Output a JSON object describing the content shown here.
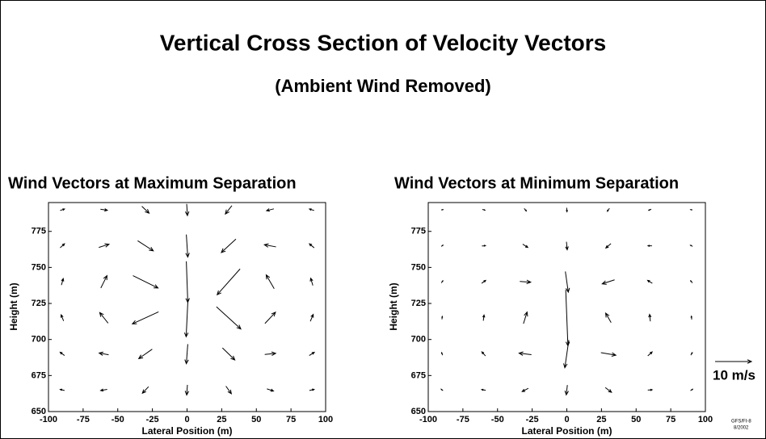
{
  "header": {
    "title": "Vertical Cross Section of Velocity Vectors",
    "subtitle": "(Ambient Wind Removed)"
  },
  "scale_key": {
    "value": 10,
    "label": "10 m/s"
  },
  "footnote": [
    "GFS/FI-8",
    "8/2002"
  ],
  "chart_data": [
    {
      "type": "quiver",
      "title": "Wind Vectors at Maximum Separation",
      "xlabel": "Lateral Position (m)",
      "ylabel": "Height (m)",
      "xlim": [
        -100,
        100
      ],
      "ylim": [
        650,
        795
      ],
      "xticks": [
        -100,
        -75,
        -50,
        -25,
        0,
        25,
        50,
        75,
        100
      ],
      "yticks": [
        650,
        675,
        700,
        725,
        750,
        775
      ],
      "x": [
        -90,
        -60,
        -30,
        0,
        30,
        60,
        90,
        -90,
        -60,
        -30,
        0,
        30,
        60,
        90,
        -90,
        -60,
        -30,
        0,
        30,
        60,
        90,
        -90,
        -60,
        -30,
        0,
        30,
        60,
        90,
        -90,
        -60,
        -30,
        0,
        30,
        60,
        90,
        -90,
        -60,
        -30,
        0,
        30,
        60,
        90
      ],
      "y": [
        665,
        665,
        665,
        665,
        665,
        665,
        665,
        690,
        690,
        690,
        690,
        690,
        690,
        690,
        715,
        715,
        715,
        715,
        715,
        715,
        715,
        740,
        740,
        740,
        740,
        740,
        740,
        740,
        765,
        765,
        765,
        765,
        765,
        765,
        765,
        790,
        790,
        790,
        790,
        790,
        790,
        790
      ],
      "u": [
        -1.2,
        -1.8,
        -1.7,
        -0.2,
        1.5,
        1.8,
        1.3,
        -1.2,
        -2.6,
        -3.7,
        -0.4,
        3.4,
        3.0,
        1.4,
        -0.7,
        -2.3,
        -7.2,
        -0.5,
        6.7,
        2.9,
        0.8,
        0.5,
        1.7,
        6.9,
        0.4,
        -6.3,
        -2.2,
        -0.6,
        1.2,
        2.8,
        4.3,
        0.4,
        -4.0,
        -3.2,
        -1.3,
        1.2,
        1.9,
        2.0,
        0.2,
        -1.8,
        -2.0,
        -1.3
      ],
      "v": [
        0.3,
        -0.3,
        -1.8,
        -2.8,
        -2.1,
        -0.6,
        0.3,
        0.9,
        0.5,
        -2.6,
        -5.4,
        -3.3,
        0.3,
        0.9,
        1.7,
        2.9,
        -3.3,
        -10.4,
        -6.1,
        3.1,
        1.9,
        1.8,
        3.4,
        -3.4,
        -11.3,
        -7.1,
        3.8,
        2.0,
        1.1,
        0.9,
        -2.8,
        -6.2,
        -3.7,
        0.6,
        1.1,
        0.4,
        -0.3,
        -1.9,
        -3.2,
        -2.3,
        -0.5,
        0.4
      ]
    },
    {
      "type": "quiver",
      "title": "Wind Vectors at Minimum Separation",
      "xlabel": "Lateral Position (m)",
      "ylabel": "Height (m)",
      "xlim": [
        -100,
        100
      ],
      "ylim": [
        650,
        795
      ],
      "xticks": [
        -100,
        -75,
        -50,
        -25,
        0,
        25,
        50,
        75,
        100
      ],
      "yticks": [
        650,
        675,
        700,
        725,
        750,
        775
      ],
      "x": [
        -90,
        -60,
        -30,
        0,
        30,
        60,
        90,
        -90,
        -60,
        -30,
        0,
        30,
        60,
        90,
        -90,
        -60,
        -30,
        0,
        30,
        60,
        90,
        -90,
        -60,
        -30,
        0,
        30,
        60,
        90,
        -90,
        -60,
        -30,
        0,
        30,
        60,
        90,
        -90,
        -60,
        -30,
        0,
        30,
        60,
        90
      ],
      "y": [
        665,
        665,
        665,
        665,
        665,
        665,
        665,
        690,
        690,
        690,
        690,
        690,
        690,
        690,
        715,
        715,
        715,
        715,
        715,
        715,
        715,
        740,
        740,
        740,
        740,
        740,
        740,
        740,
        765,
        765,
        765,
        765,
        765,
        765,
        765,
        790,
        790,
        790,
        790,
        790,
        790,
        790
      ],
      "u": [
        -0.5,
        -1.1,
        -1.7,
        -0.3,
        1.7,
        1.2,
        0.6,
        -0.3,
        -1.0,
        -3.4,
        -1.1,
        4.1,
        1.2,
        0.4,
        0.1,
        0.2,
        1.0,
        0.6,
        -1.5,
        -0.2,
        -0.1,
        0.4,
        1.1,
        3.0,
        0.8,
        -3.4,
        -1.3,
        -0.5,
        0.5,
        1.0,
        1.4,
        0.2,
        -1.4,
        -1.1,
        -0.6,
        0.5,
        0.7,
        0.6,
        0.1,
        -0.6,
        -0.7,
        -0.5
      ],
      "v": [
        0.4,
        0.2,
        -0.9,
        -2.7,
        -1.3,
        0.1,
        0.4,
        0.7,
        1.1,
        0.4,
        -7.6,
        -0.7,
        1.1,
        0.7,
        0.8,
        1.6,
        3.2,
        -15.4,
        2.6,
        1.9,
        0.9,
        0.6,
        0.8,
        -0.2,
        -5.7,
        -1.1,
        0.8,
        0.6,
        0.3,
        0.1,
        -0.9,
        -2.2,
        -1.2,
        0.0,
        0.3,
        0.1,
        -0.2,
        -0.7,
        -1.1,
        -0.8,
        -0.3,
        0.1
      ]
    }
  ]
}
